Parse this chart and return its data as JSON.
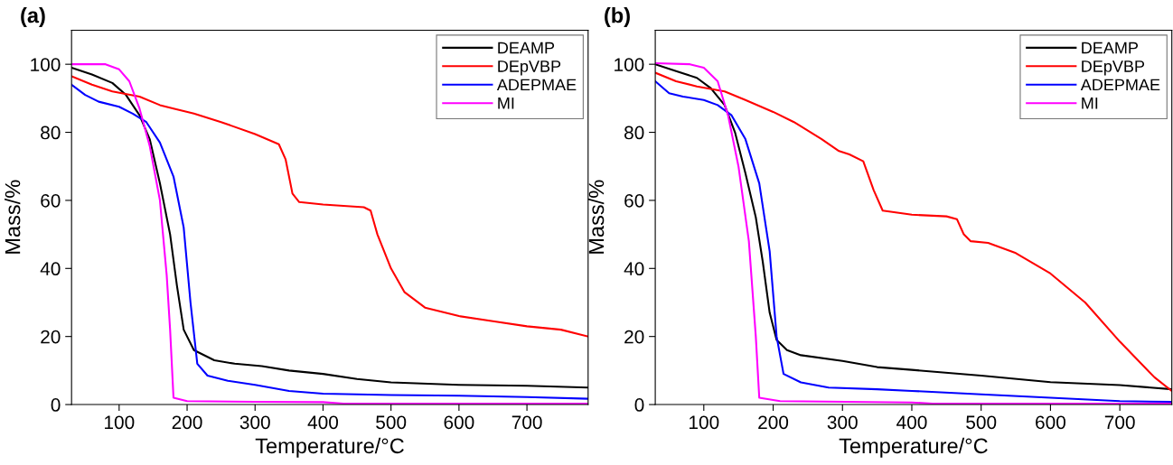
{
  "chart_data": [
    {
      "type": "line",
      "title": "(a)",
      "xlabel": "Temperature/°C",
      "ylabel": "Mass/%",
      "xlim": [
        30,
        790
      ],
      "ylim": [
        0,
        110
      ],
      "xticks": [
        100,
        200,
        300,
        400,
        500,
        600,
        700
      ],
      "yticks": [
        0,
        20,
        40,
        60,
        80,
        100
      ],
      "legend": "top right",
      "grid": false,
      "series": [
        {
          "name": "DEAMP",
          "color": "#000000",
          "x": [
            30,
            60,
            90,
            110,
            130,
            145,
            160,
            175,
            185,
            195,
            210,
            240,
            270,
            310,
            350,
            400,
            450,
            500,
            600,
            700,
            790
          ],
          "values": [
            99,
            97,
            94.5,
            91,
            85,
            78,
            65,
            50,
            35,
            22,
            16,
            13,
            12,
            11.3,
            10,
            9,
            7.5,
            6.5,
            5.8,
            5.5,
            5
          ]
        },
        {
          "name": "DEpVBP",
          "color": "#ff0000",
          "x": [
            30,
            60,
            90,
            130,
            160,
            180,
            210,
            250,
            300,
            335,
            345,
            355,
            365,
            400,
            460,
            470,
            480,
            500,
            520,
            550,
            600,
            650,
            700,
            750,
            790
          ],
          "values": [
            96.5,
            94,
            92,
            90.5,
            88,
            87,
            85.5,
            83,
            79.5,
            76.5,
            72,
            62,
            59.5,
            58.8,
            58,
            57,
            50,
            40,
            33,
            28.5,
            26,
            24.5,
            23,
            22,
            20
          ]
        },
        {
          "name": "ADEPMAE",
          "color": "#0000ff",
          "x": [
            30,
            50,
            70,
            100,
            120,
            140,
            160,
            180,
            195,
            205,
            215,
            230,
            260,
            300,
            350,
            400,
            500,
            600,
            700,
            790
          ],
          "values": [
            94,
            91,
            89,
            87.5,
            85.5,
            83,
            77,
            67,
            52,
            30,
            12,
            8.5,
            7,
            5.8,
            4,
            3.2,
            2.8,
            2.6,
            2.2,
            1.7
          ]
        },
        {
          "name": "MI",
          "color": "#ff00ff",
          "x": [
            30,
            80,
            100,
            115,
            130,
            145,
            160,
            170,
            175,
            180,
            200,
            300,
            400,
            430,
            790
          ],
          "values": [
            100,
            100,
            98.5,
            95,
            87,
            76,
            60,
            38,
            22,
            2,
            1,
            0.8,
            0.7,
            0.3,
            0.3
          ]
        }
      ]
    },
    {
      "type": "line",
      "title": "(b)",
      "xlabel": "Temperature/°C",
      "ylabel": "Mass/%",
      "xlim": [
        30,
        775
      ],
      "ylim": [
        0,
        110
      ],
      "xticks": [
        100,
        200,
        300,
        400,
        500,
        600,
        700
      ],
      "yticks": [
        0,
        20,
        40,
        60,
        80,
        100
      ],
      "legend": "top right",
      "grid": false,
      "series": [
        {
          "name": "DEAMP",
          "color": "#000000",
          "x": [
            30,
            60,
            90,
            110,
            130,
            145,
            160,
            175,
            185,
            195,
            205,
            220,
            240,
            300,
            350,
            400,
            500,
            600,
            700,
            775
          ],
          "values": [
            100,
            98,
            96,
            93,
            88,
            80,
            68,
            55,
            42,
            27,
            19,
            16,
            14.5,
            12.8,
            11,
            10.2,
            8.5,
            6.6,
            5.7,
            4.5
          ]
        },
        {
          "name": "DEpVBP",
          "color": "#ff0000",
          "x": [
            30,
            60,
            90,
            130,
            160,
            200,
            230,
            270,
            295,
            310,
            330,
            345,
            358,
            400,
            450,
            465,
            475,
            485,
            510,
            550,
            600,
            650,
            700,
            750,
            775
          ],
          "values": [
            97.5,
            95,
            93.5,
            92,
            89.5,
            86,
            83,
            78,
            74.5,
            73.5,
            71.5,
            63,
            57,
            55.8,
            55.3,
            54.5,
            50,
            48,
            47.5,
            44.5,
            38.5,
            30,
            18.5,
            8,
            4
          ]
        },
        {
          "name": "ADEPMAE",
          "color": "#0000ff",
          "x": [
            30,
            50,
            70,
            100,
            120,
            140,
            160,
            180,
            195,
            205,
            215,
            240,
            280,
            350,
            400,
            500,
            600,
            700,
            775
          ],
          "values": [
            95,
            91.5,
            90.5,
            89.5,
            88,
            85,
            78,
            65,
            45,
            20,
            9,
            6.5,
            5,
            4.5,
            4,
            3,
            2,
            1,
            0.8
          ]
        },
        {
          "name": "MI",
          "color": "#ff00ff",
          "x": [
            30,
            80,
            100,
            120,
            135,
            150,
            165,
            175,
            180,
            210,
            400,
            430,
            775
          ],
          "values": [
            100.3,
            100,
            99,
            95,
            85,
            70,
            48,
            20,
            2,
            1,
            0.6,
            0.3,
            0.3
          ]
        }
      ]
    }
  ]
}
